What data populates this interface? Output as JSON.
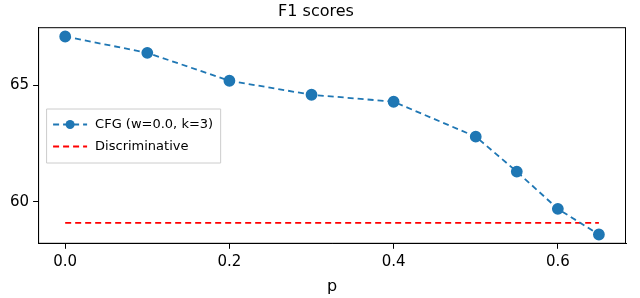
{
  "chart_data": {
    "type": "line",
    "title": "F1 scores",
    "x_label": "p",
    "x": [
      0.0,
      0.1,
      0.2,
      0.3,
      0.4,
      0.5,
      0.55,
      0.6,
      0.65
    ],
    "series": [
      {
        "name": "CFG (w=0.0, k=3)",
        "color": "#1f77b4",
        "line_style": "dashed",
        "marker": "circle",
        "values": [
          67.1,
          66.4,
          65.2,
          64.6,
          64.3,
          62.8,
          61.3,
          59.7,
          58.6
        ]
      },
      {
        "name": "Discriminative",
        "color": "#ff0000",
        "line_style": "dashed",
        "marker": "none",
        "values": [
          59.1,
          59.1,
          59.1,
          59.1,
          59.1,
          59.1,
          59.1,
          59.1,
          59.1
        ]
      }
    ],
    "xlim": [
      -0.033,
      0.683
    ],
    "xticks": [
      {
        "value": 0,
        "label": "0.0"
      },
      {
        "value": 0.2,
        "label": "0.2"
      },
      {
        "value": 0.4,
        "label": "0.4"
      },
      {
        "value": 0.6,
        "label": "0.6"
      }
    ],
    "ylim": [
      58.2,
      67.5
    ],
    "yticks": [
      60,
      65
    ],
    "legend": "center left",
    "grid": false
  }
}
